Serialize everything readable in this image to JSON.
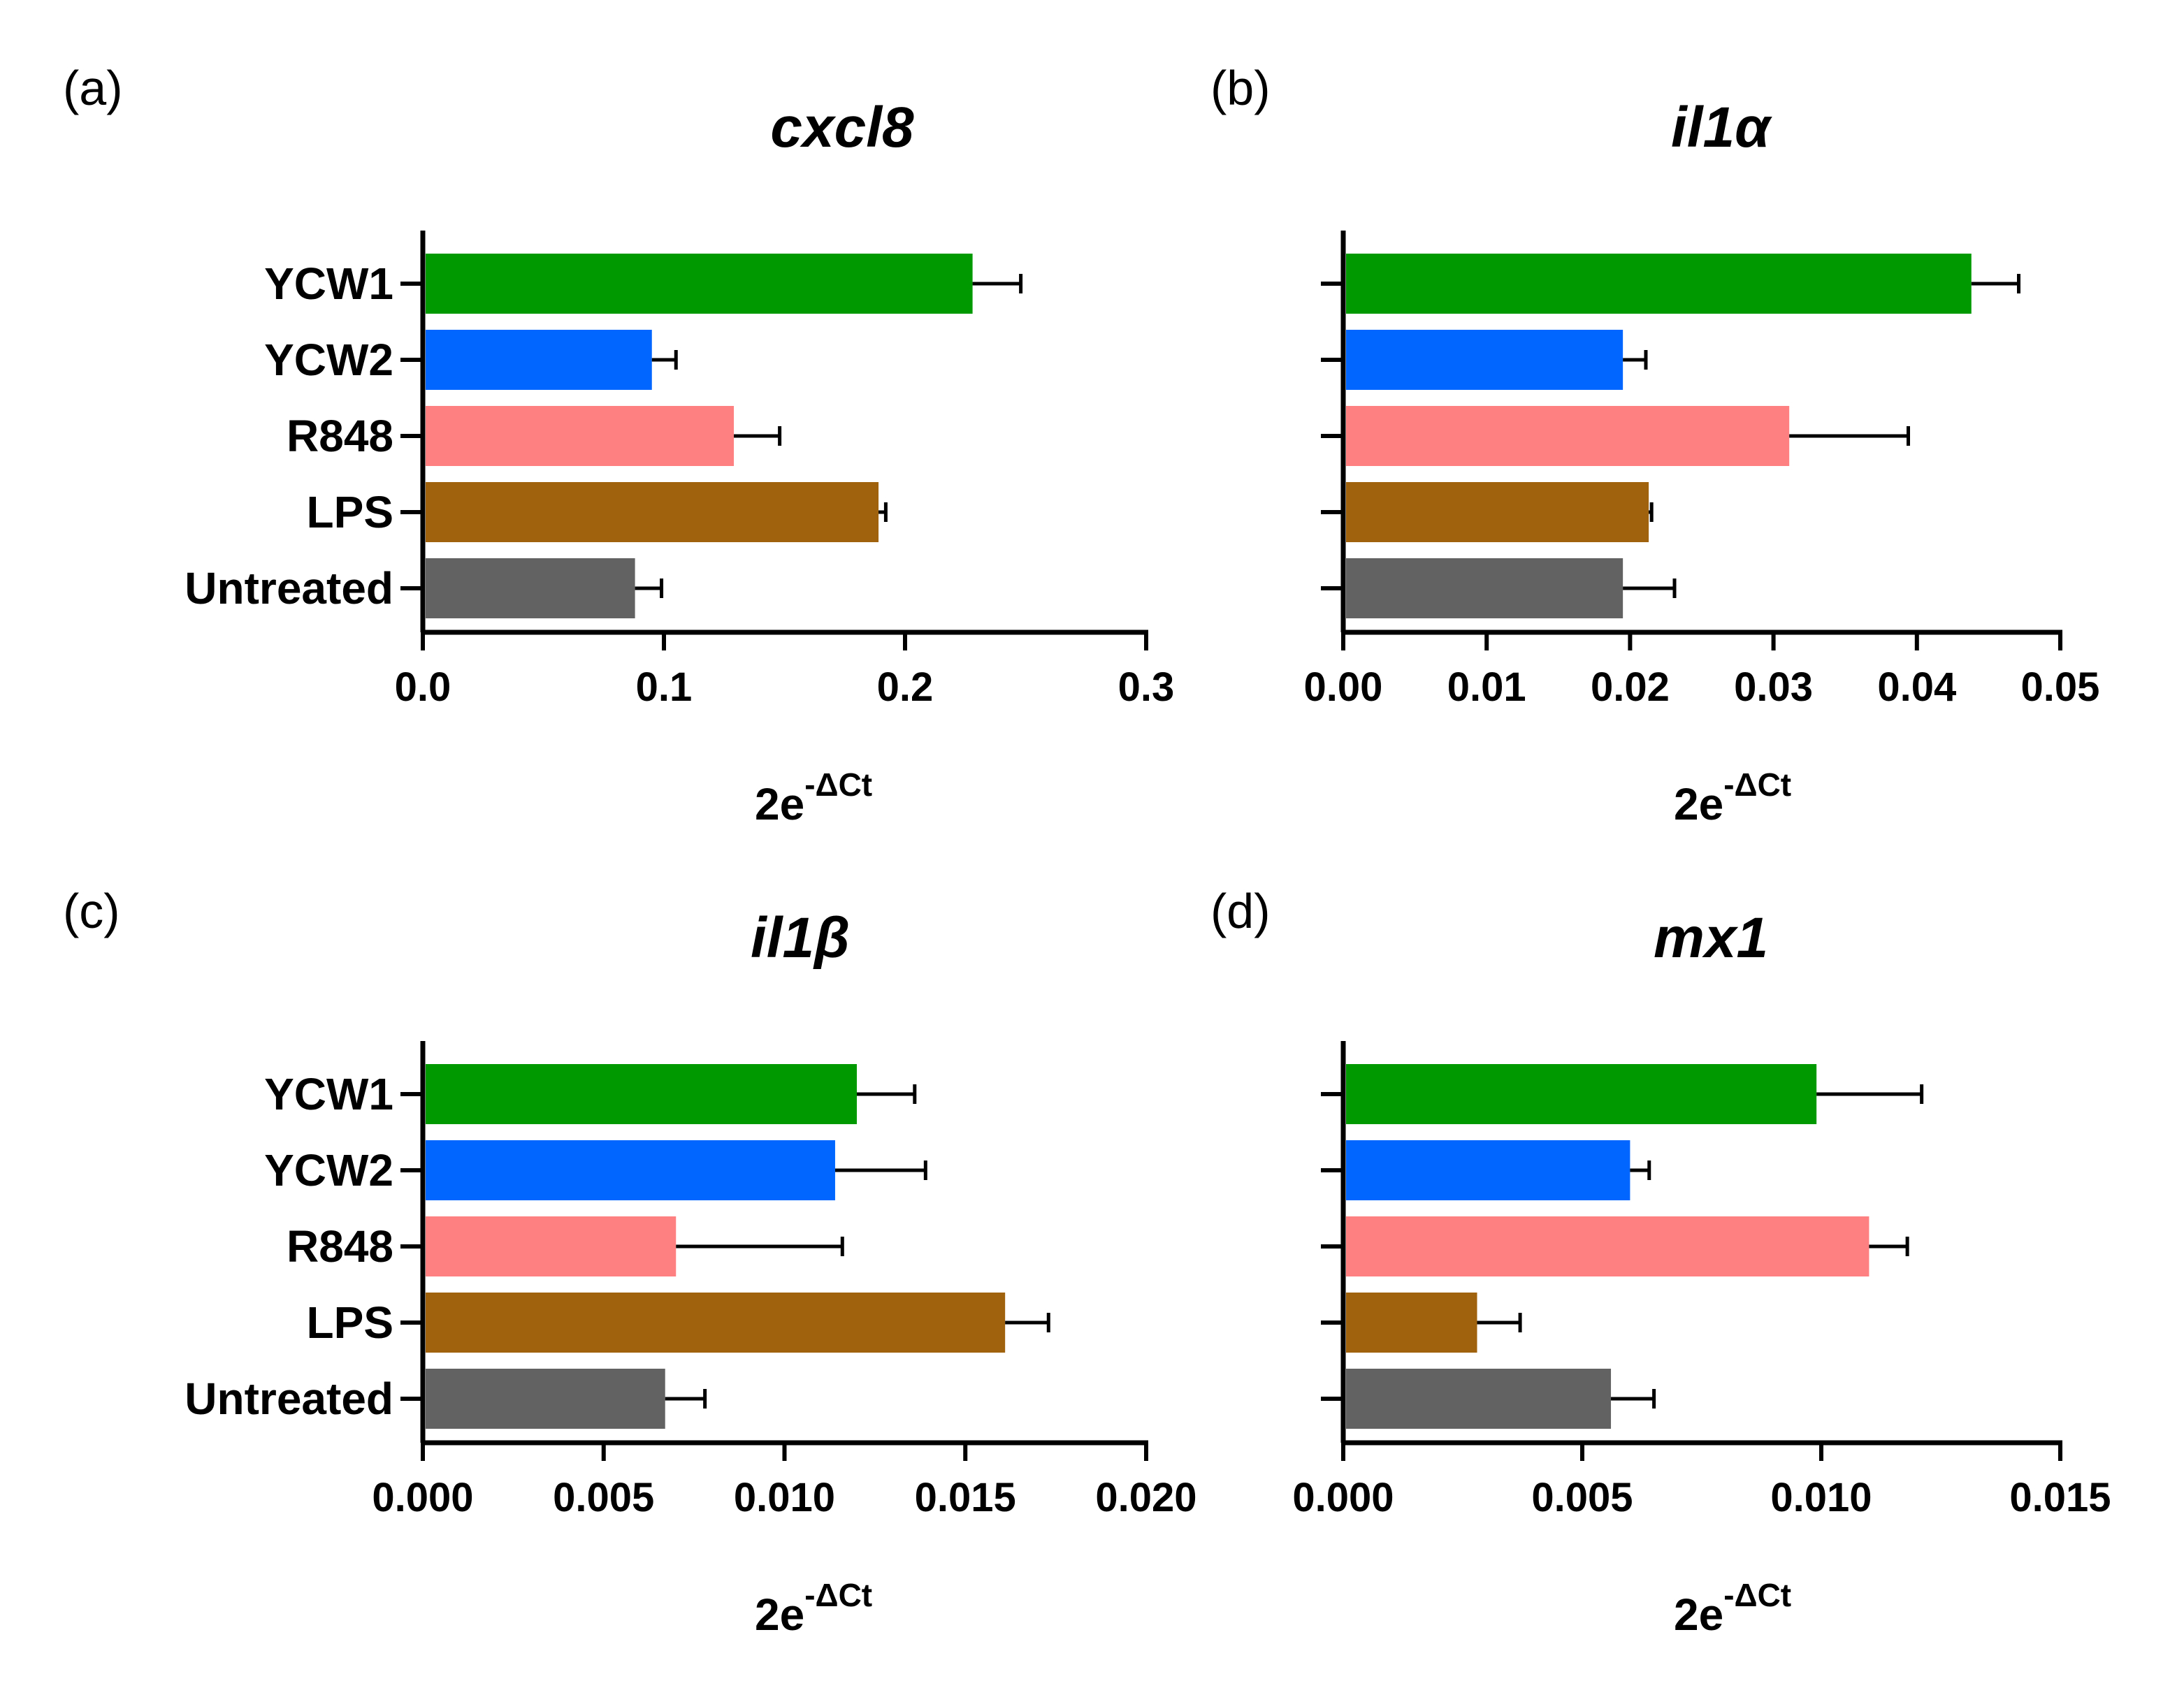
{
  "figure": {
    "background": "#ffffff"
  },
  "chart_data": [
    {
      "panel": "(a)",
      "type": "bar",
      "orientation": "horizontal",
      "title": "cxcl8",
      "xlabel": {
        "base": "2e",
        "sup": "-ΔCt"
      },
      "categories": [
        "YCW1",
        "YCW2",
        "R848",
        "LPS",
        "Untreated"
      ],
      "show_category_labels": true,
      "values": [
        0.228,
        0.095,
        0.129,
        0.189,
        0.088
      ],
      "errors": [
        0.02,
        0.01,
        0.019,
        0.003,
        0.011
      ],
      "colors": [
        "#009900",
        "#0066ff",
        "#ff8080",
        "#a0620d",
        "#626262"
      ],
      "xlim": [
        0,
        0.3
      ],
      "xticks": [
        "0.0",
        "0.1",
        "0.2",
        "0.3"
      ],
      "xtick_values": [
        0,
        0.1,
        0.2,
        0.3
      ]
    },
    {
      "panel": "(b)",
      "type": "bar",
      "orientation": "horizontal",
      "title": "il1α",
      "xlabel": {
        "base": "2e",
        "sup": "-ΔCt"
      },
      "categories": [
        "YCW1",
        "YCW2",
        "R848",
        "LPS",
        "Untreated"
      ],
      "show_category_labels": false,
      "values": [
        0.0438,
        0.0195,
        0.0311,
        0.0213,
        0.0195
      ],
      "errors": [
        0.0033,
        0.0016,
        0.0083,
        0.0002,
        0.0036
      ],
      "colors": [
        "#009900",
        "#0066ff",
        "#ff8080",
        "#a0620d",
        "#626262"
      ],
      "xlim": [
        0,
        0.05
      ],
      "xticks": [
        "0.00",
        "0.01",
        "0.02",
        "0.03",
        "0.04",
        "0.05"
      ],
      "xtick_values": [
        0,
        0.01,
        0.02,
        0.03,
        0.04,
        0.05
      ]
    },
    {
      "panel": "(c)",
      "type": "bar",
      "orientation": "horizontal",
      "title": "il1β",
      "xlabel": {
        "base": "2e",
        "sup": "-ΔCt"
      },
      "categories": [
        "YCW1",
        "YCW2",
        "R848",
        "LPS",
        "Untreated"
      ],
      "show_category_labels": true,
      "values": [
        0.012,
        0.0114,
        0.007,
        0.0161,
        0.0067
      ],
      "errors": [
        0.0016,
        0.0025,
        0.0046,
        0.0012,
        0.0011
      ],
      "colors": [
        "#009900",
        "#0066ff",
        "#ff8080",
        "#a0620d",
        "#626262"
      ],
      "xlim": [
        0,
        0.02
      ],
      "xticks": [
        "0.000",
        "0.005",
        "0.010",
        "0.015",
        "0.020"
      ],
      "xtick_values": [
        0,
        0.005,
        0.01,
        0.015,
        0.02
      ]
    },
    {
      "panel": "(d)",
      "type": "bar",
      "orientation": "horizontal",
      "title": "mx1",
      "xlabel": {
        "base": "2e",
        "sup": "-ΔCt"
      },
      "categories": [
        "YCW1",
        "YCW2",
        "R848",
        "LPS",
        "Untreated"
      ],
      "show_category_labels": false,
      "values": [
        0.0099,
        0.006,
        0.011,
        0.0028,
        0.0056
      ],
      "errors": [
        0.0022,
        0.0004,
        0.0008,
        0.0009,
        0.0009
      ],
      "colors": [
        "#009900",
        "#0066ff",
        "#ff8080",
        "#a0620d",
        "#626262"
      ],
      "xlim": [
        0,
        0.015
      ],
      "xticks": [
        "0.000",
        "0.005",
        "0.010",
        "0.015"
      ],
      "xtick_values": [
        0,
        0.005,
        0.01,
        0.015
      ]
    }
  ]
}
